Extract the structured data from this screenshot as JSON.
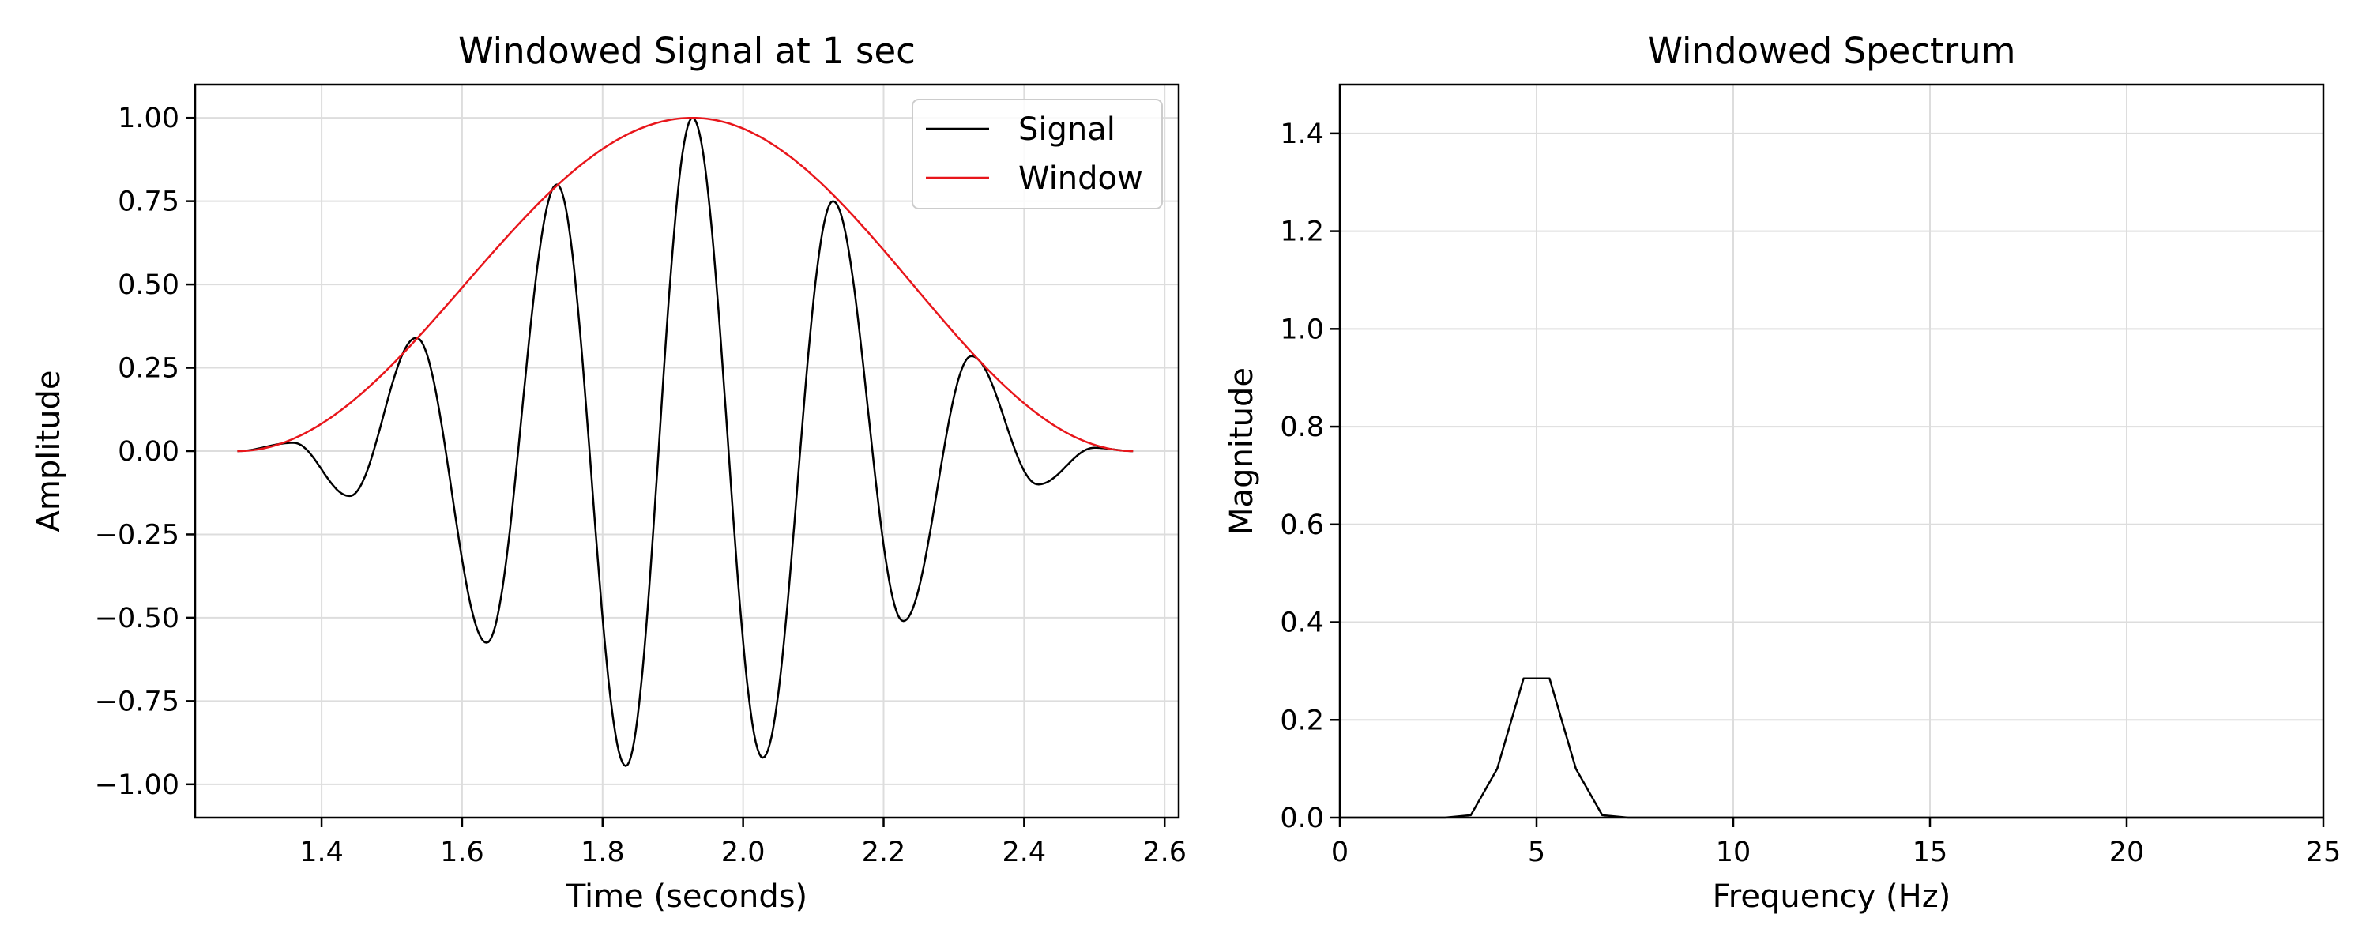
{
  "chart_data": [
    {
      "type": "line",
      "title": "Windowed Signal at 1 sec",
      "xlabel": "Time (seconds)",
      "ylabel": "Amplitude",
      "xlim": [
        1.22,
        2.62
      ],
      "ylim": [
        -1.1,
        1.1
      ],
      "xticks": [
        1.4,
        1.6,
        1.8,
        2.0,
        2.2,
        2.4,
        2.6
      ],
      "xtick_labels": [
        "1.4",
        "1.6",
        "1.8",
        "2.0",
        "2.2",
        "2.4",
        "2.6"
      ],
      "yticks": [
        -1.0,
        -0.75,
        -0.5,
        -0.25,
        0.0,
        0.25,
        0.5,
        0.75,
        1.0
      ],
      "ytick_labels": [
        "−1.00",
        "−0.75",
        "−0.50",
        "−0.25",
        "0.00",
        "0.25",
        "0.50",
        "0.75",
        "1.00"
      ],
      "grid": true,
      "legend": "top-right",
      "series": [
        {
          "name": "Signal",
          "color": "#000000",
          "x": [
            1.28,
            1.36,
            1.44,
            1.535,
            1.635,
            1.735,
            1.833,
            1.928,
            2.028,
            2.128,
            2.228,
            2.325,
            2.42,
            2.5,
            2.555
          ],
          "y": [
            0.0,
            0.025,
            -0.135,
            0.34,
            -0.575,
            0.8,
            -0.945,
            1.0,
            -0.92,
            0.75,
            -0.51,
            0.285,
            -0.1,
            0.01,
            0.0
          ]
        },
        {
          "name": "Window",
          "color": "#e8161b",
          "x": [
            1.28,
            1.36,
            1.44,
            1.53,
            1.6,
            1.7,
            1.8,
            1.928,
            2.0,
            2.1,
            2.2,
            2.32,
            2.42,
            2.5,
            2.555
          ],
          "y": [
            0.0,
            0.04,
            0.15,
            0.35,
            0.52,
            0.76,
            0.93,
            1.0,
            0.97,
            0.86,
            0.66,
            0.29,
            0.13,
            0.025,
            0.0
          ]
        }
      ]
    },
    {
      "type": "line",
      "title": "Windowed Spectrum",
      "xlabel": "Frequency (Hz)",
      "ylabel": "Magnitude",
      "xlim": [
        0,
        25
      ],
      "ylim": [
        0,
        1.5
      ],
      "xticks": [
        0,
        5,
        10,
        15,
        20,
        25
      ],
      "xtick_labels": [
        "0",
        "5",
        "10",
        "15",
        "20",
        "25"
      ],
      "yticks": [
        0.0,
        0.2,
        0.4,
        0.6,
        0.8,
        1.0,
        1.2,
        1.4
      ],
      "ytick_labels": [
        "0.0",
        "0.2",
        "0.4",
        "0.6",
        "0.8",
        "1.0",
        "1.2",
        "1.4"
      ],
      "grid": true,
      "series": [
        {
          "color": "#000000",
          "x": [
            0,
            2.67,
            3.33,
            4.0,
            4.67,
            5.33,
            6.0,
            6.67,
            7.33,
            8.0,
            25
          ],
          "y": [
            0.0,
            0.0,
            0.005,
            0.1,
            0.285,
            0.285,
            0.1,
            0.005,
            0.0,
            0.0,
            0.0
          ]
        }
      ]
    }
  ]
}
